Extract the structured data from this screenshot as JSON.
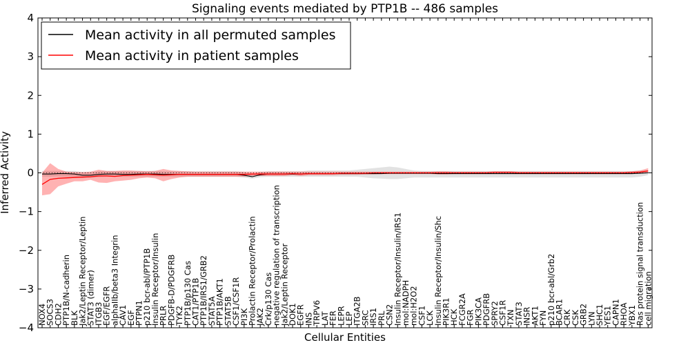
{
  "chart_data": {
    "type": "line",
    "title": "Signaling events mediated by PTP1B -- 486 samples",
    "xlabel": "Cellular Entities",
    "ylabel": "Inferred Activity",
    "ylim": [
      -4,
      4
    ],
    "yticks": [
      -4,
      -3,
      -2,
      -1,
      0,
      1,
      2,
      3,
      4
    ],
    "ytick_labels": [
      "−4",
      "−3",
      "−2",
      "−1",
      "0",
      "1",
      "2",
      "3",
      "4"
    ],
    "legend_position": "top-left",
    "categories": [
      "NOX4",
      "SOCS3",
      "CDH2",
      "PTP1B/N-cadherin",
      "BLK",
      "Jak2/Leptin Receptor/Leptin",
      "STAT3 (dimer)",
      "ITGB3",
      "EGF/EGFR",
      "alphaIIb/beta3 Integrin",
      "CAV1",
      "EGF",
      "PTPN1",
      "p210 bcr-abl/PTP1B",
      "Insulin Receptor/Insulin",
      "PRLR",
      "PDGFB-D/PDGFRB",
      "TYK2",
      "PTP1B/p130 Cas",
      "CAT1/PTP1B",
      "PTP1B/IRS1/GRB2",
      "STAT5A",
      "PTP1B/AKT1",
      "STAT5B",
      "CSF1/CSF1R",
      "PI3K",
      "Prolactin Receptor/Prolactin",
      "JAK2",
      "Crk/p130 Cas",
      "negative regulation of transcription",
      "Jak2/Leptin Receptor",
      "DOK1",
      "EGFR",
      "INS",
      "TRPV6",
      "LAT",
      "FER",
      "LEPR",
      "LEP",
      "ITGA2B",
      "SRC",
      "IRS1",
      "PRL",
      "CSN2",
      "Insulin Receptor/Insulin/IRS1",
      "mol:NADPH",
      "mol:H2O2",
      "CSF1",
      "LCK",
      "Insulin Receptor/Insulin/Shc",
      "PIK3R1",
      "HCK",
      "FCGR2A",
      "FGR",
      "PIK3CA",
      "PDGFRB",
      "SPRY2",
      "CSF1R",
      "TXN",
      "STAT3",
      "INSR",
      "AKT1",
      "FYN",
      "p210 bcr-abl/Grb2",
      "BCAR1",
      "CRK",
      "CSK",
      "GRB2",
      "LYN",
      "SHC1",
      "YES1",
      "CAPN1",
      "RHOA",
      "YBX1",
      "Ras protein signal transduction",
      "cell migration"
    ],
    "series": [
      {
        "name": "Mean activity in all permuted samples",
        "color": "#000000",
        "values": [
          -0.03,
          -0.03,
          -0.02,
          -0.02,
          -0.03,
          -0.06,
          -0.06,
          -0.04,
          -0.03,
          -0.03,
          -0.04,
          -0.04,
          -0.03,
          -0.03,
          -0.03,
          -0.04,
          -0.04,
          -0.04,
          -0.04,
          -0.04,
          -0.04,
          -0.04,
          -0.04,
          -0.04,
          -0.04,
          -0.06,
          -0.1,
          -0.05,
          -0.03,
          -0.03,
          -0.03,
          -0.03,
          -0.03,
          -0.02,
          -0.02,
          -0.02,
          -0.02,
          -0.02,
          -0.02,
          -0.02,
          -0.02,
          -0.02,
          -0.02,
          -0.01,
          -0.01,
          -0.01,
          -0.01,
          -0.01,
          -0.01,
          -0.02,
          -0.02,
          -0.02,
          -0.02,
          -0.02,
          -0.02,
          -0.02,
          -0.02,
          -0.02,
          -0.02,
          -0.02,
          -0.02,
          -0.02,
          -0.02,
          -0.02,
          -0.02,
          -0.02,
          -0.02,
          -0.02,
          -0.02,
          -0.02,
          -0.02,
          -0.02,
          -0.02,
          -0.02,
          -0.01,
          0.0
        ],
        "lower": [
          -0.1,
          -0.1,
          -0.09,
          -0.1,
          -0.1,
          -0.13,
          -0.13,
          -0.11,
          -0.1,
          -0.1,
          -0.1,
          -0.1,
          -0.1,
          -0.1,
          -0.1,
          -0.1,
          -0.1,
          -0.1,
          -0.1,
          -0.1,
          -0.1,
          -0.1,
          -0.1,
          -0.1,
          -0.1,
          -0.12,
          -0.15,
          -0.11,
          -0.1,
          -0.1,
          -0.1,
          -0.1,
          -0.1,
          -0.1,
          -0.1,
          -0.1,
          -0.1,
          -0.1,
          -0.1,
          -0.1,
          -0.12,
          -0.14,
          -0.15,
          -0.16,
          -0.16,
          -0.14,
          -0.12,
          -0.12,
          -0.12,
          -0.12,
          -0.12,
          -0.12,
          -0.12,
          -0.12,
          -0.12,
          -0.12,
          -0.12,
          -0.12,
          -0.12,
          -0.12,
          -0.12,
          -0.12,
          -0.12,
          -0.12,
          -0.12,
          -0.12,
          -0.12,
          -0.12,
          -0.12,
          -0.12,
          -0.12,
          -0.12,
          -0.12,
          -0.12,
          -0.1,
          -0.06
        ],
        "upper": [
          0.05,
          0.05,
          0.05,
          0.05,
          0.05,
          0.02,
          0.02,
          0.04,
          0.05,
          0.05,
          0.04,
          0.04,
          0.05,
          0.05,
          0.05,
          0.04,
          0.04,
          0.04,
          0.04,
          0.04,
          0.04,
          0.04,
          0.04,
          0.04,
          0.04,
          0.02,
          -0.04,
          0.02,
          0.04,
          0.04,
          0.04,
          0.04,
          0.04,
          0.06,
          0.06,
          0.06,
          0.06,
          0.06,
          0.06,
          0.08,
          0.1,
          0.12,
          0.14,
          0.16,
          0.14,
          0.1,
          0.06,
          0.05,
          0.05,
          0.05,
          0.05,
          0.05,
          0.05,
          0.05,
          0.05,
          0.05,
          0.05,
          0.05,
          0.05,
          0.05,
          0.05,
          0.05,
          0.05,
          0.05,
          0.05,
          0.05,
          0.05,
          0.05,
          0.05,
          0.05,
          0.05,
          0.05,
          0.05,
          0.05,
          0.06,
          0.06
        ]
      },
      {
        "name": "Mean activity in patient samples",
        "color": "#ff0000",
        "values": [
          -0.3,
          -0.17,
          -0.14,
          -0.13,
          -0.12,
          -0.11,
          -0.1,
          -0.08,
          -0.08,
          -0.09,
          -0.07,
          -0.06,
          -0.05,
          -0.04,
          -0.05,
          -0.06,
          -0.05,
          -0.04,
          -0.04,
          -0.04,
          -0.04,
          -0.04,
          -0.04,
          -0.04,
          -0.04,
          -0.04,
          -0.03,
          -0.03,
          -0.03,
          -0.03,
          -0.03,
          -0.02,
          -0.03,
          -0.02,
          -0.02,
          -0.02,
          -0.02,
          -0.01,
          -0.01,
          -0.01,
          -0.01,
          0.0,
          0.0,
          0.0,
          0.0,
          0.0,
          0.0,
          0.0,
          0.0,
          0.0,
          0.0,
          0.0,
          0.0,
          0.0,
          0.0,
          0.0,
          0.01,
          0.01,
          0.01,
          0.0,
          0.0,
          0.0,
          0.0,
          0.0,
          0.0,
          0.0,
          0.0,
          0.0,
          0.0,
          0.0,
          0.0,
          0.0,
          0.0,
          0.01,
          0.02,
          0.05
        ],
        "lower": [
          -0.58,
          -0.55,
          -0.35,
          -0.28,
          -0.22,
          -0.22,
          -0.18,
          -0.25,
          -0.26,
          -0.22,
          -0.2,
          -0.18,
          -0.14,
          -0.12,
          -0.14,
          -0.22,
          -0.16,
          -0.12,
          -0.1,
          -0.1,
          -0.1,
          -0.1,
          -0.1,
          -0.1,
          -0.1,
          -0.1,
          -0.08,
          -0.08,
          -0.08,
          -0.08,
          -0.08,
          -0.06,
          -0.08,
          -0.06,
          -0.06,
          -0.06,
          -0.06,
          -0.05,
          -0.05,
          -0.05,
          -0.04,
          -0.04,
          -0.03,
          -0.03,
          -0.03,
          -0.03,
          -0.03,
          -0.03,
          -0.03,
          -0.04,
          -0.04,
          -0.03,
          -0.03,
          -0.03,
          -0.03,
          -0.03,
          -0.03,
          -0.03,
          -0.03,
          -0.03,
          -0.03,
          -0.03,
          -0.03,
          -0.03,
          -0.03,
          -0.03,
          -0.03,
          -0.03,
          -0.03,
          -0.03,
          -0.03,
          -0.03,
          -0.03,
          -0.03,
          -0.02,
          0.0
        ],
        "upper": [
          0.0,
          0.25,
          0.1,
          0.03,
          0.02,
          0.02,
          0.03,
          0.08,
          0.05,
          0.05,
          0.06,
          0.06,
          0.05,
          0.04,
          0.05,
          0.1,
          0.06,
          0.05,
          0.04,
          0.03,
          0.03,
          0.03,
          0.03,
          0.03,
          0.03,
          0.03,
          0.03,
          0.03,
          0.03,
          0.03,
          0.03,
          0.03,
          0.03,
          0.03,
          0.03,
          0.03,
          0.03,
          0.03,
          0.03,
          0.03,
          0.03,
          0.03,
          0.03,
          0.03,
          0.03,
          0.03,
          0.03,
          0.03,
          0.03,
          0.04,
          0.04,
          0.03,
          0.03,
          0.03,
          0.03,
          0.03,
          0.04,
          0.04,
          0.04,
          0.03,
          0.03,
          0.03,
          0.03,
          0.03,
          0.03,
          0.03,
          0.03,
          0.03,
          0.03,
          0.03,
          0.03,
          0.03,
          0.03,
          0.04,
          0.06,
          0.12
        ]
      }
    ]
  }
}
